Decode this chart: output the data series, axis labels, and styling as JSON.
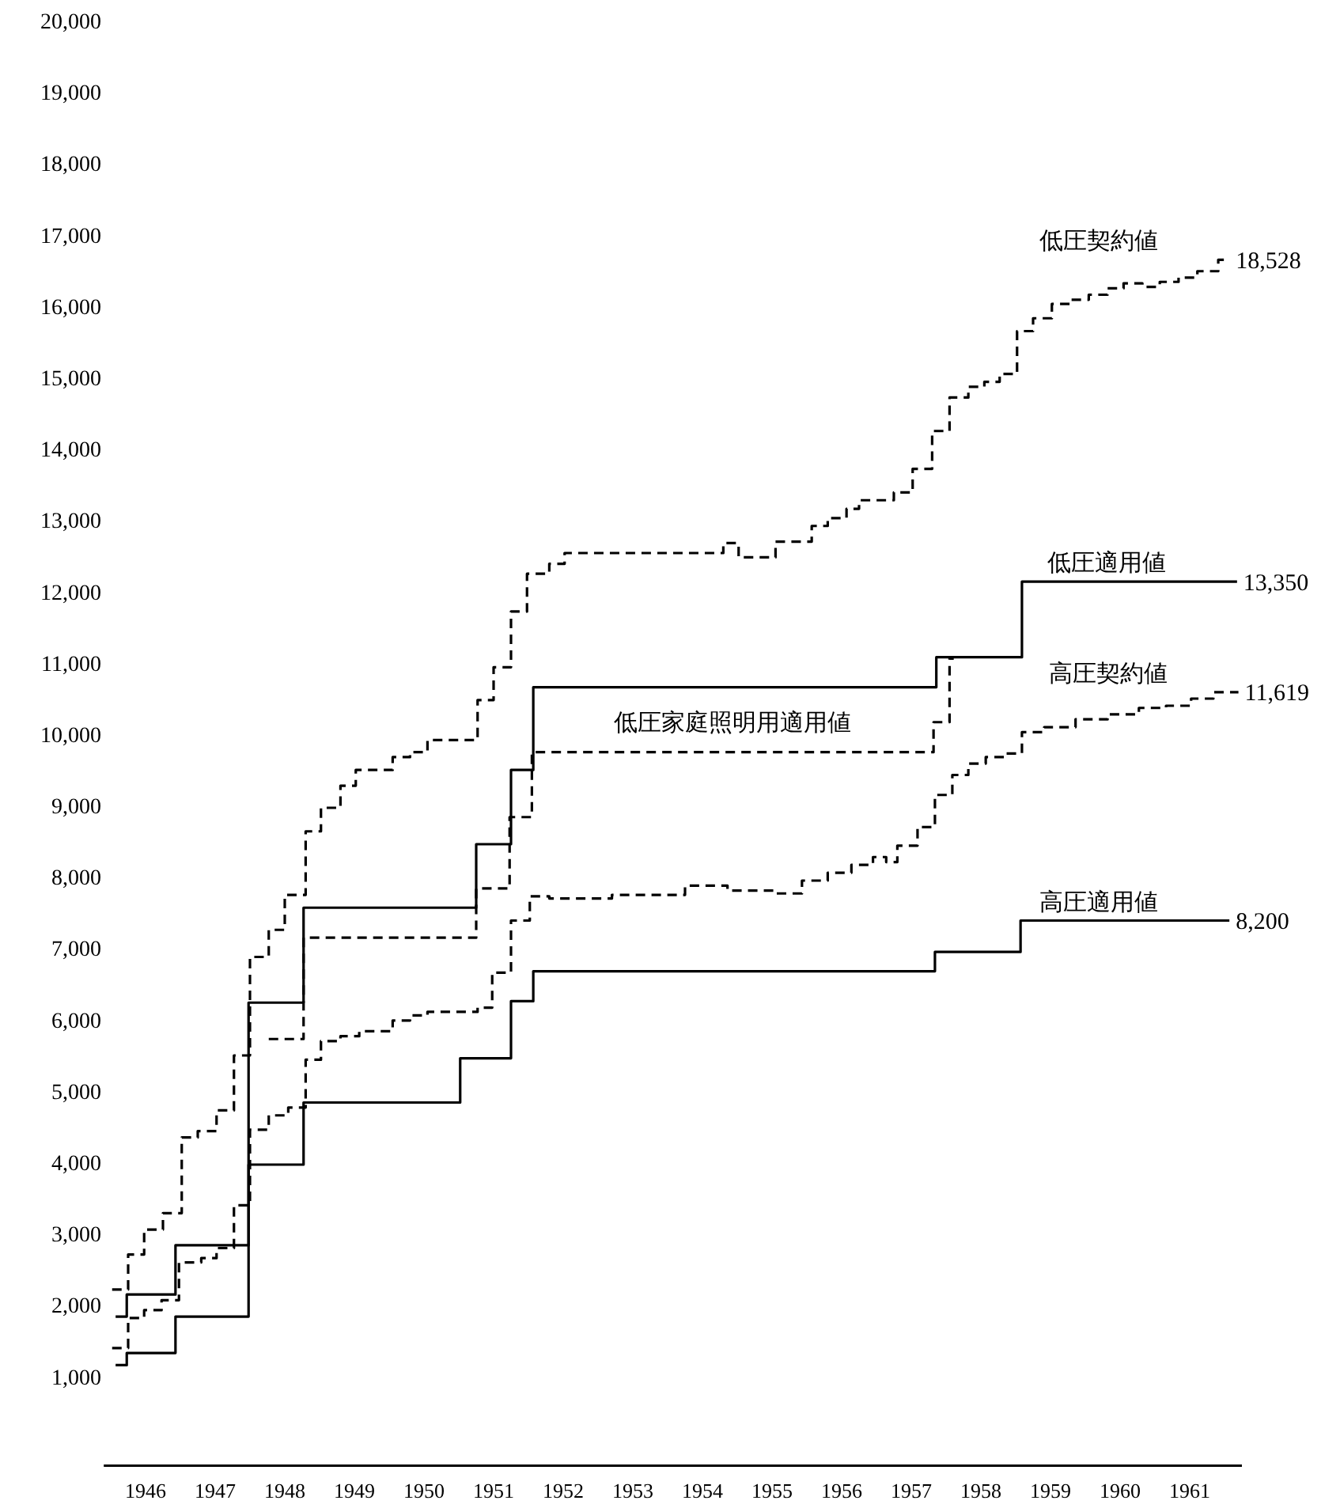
{
  "chart_data": {
    "type": "step",
    "xlim": [
      1945.4,
      1961.75
    ],
    "ylim": [
      -250,
      20250
    ],
    "xticks": [
      1946,
      1947,
      1948,
      1949,
      1950,
      1951,
      1952,
      1953,
      1954,
      1955,
      1956,
      1957,
      1958,
      1959,
      1960,
      1961
    ],
    "yticks": [
      {
        "value": 1000,
        "label": "1,000"
      },
      {
        "value": 2000,
        "label": "2,000"
      },
      {
        "value": 3000,
        "label": "3,000"
      },
      {
        "value": 4000,
        "label": "4,000"
      },
      {
        "value": 5000,
        "label": "5,000"
      },
      {
        "value": 6000,
        "label": "6,000"
      },
      {
        "value": 7000,
        "label": "7,000"
      },
      {
        "value": 8000,
        "label": "8,000"
      },
      {
        "value": 9000,
        "label": "9,000"
      },
      {
        "value": 10000,
        "label": "10,000"
      },
      {
        "value": 11000,
        "label": "11,000"
      },
      {
        "value": 12000,
        "label": "12,000"
      },
      {
        "value": 13000,
        "label": "13,000"
      },
      {
        "value": 14000,
        "label": "14,000"
      },
      {
        "value": 15000,
        "label": "15,000"
      },
      {
        "value": 16000,
        "label": "16,000"
      },
      {
        "value": 17000,
        "label": "17,000"
      },
      {
        "value": 18000,
        "label": "18,000"
      },
      {
        "value": 19000,
        "label": "19,000"
      },
      {
        "value": 20000,
        "label": "20,000"
      }
    ],
    "grid": false,
    "marker": "none",
    "series": [
      {
        "name": "低圧契約値",
        "color": "#000000",
        "line_style": "dashed",
        "x": [
          1945.52,
          1945.75,
          1945.98,
          1946.25,
          1946.52,
          1946.75,
          1947.02,
          1947.27,
          1947.5,
          1947.77,
          1948.0,
          1948.3,
          1948.52,
          1948.8,
          1949.02,
          1949.55,
          1949.8,
          1950.05,
          1950.77,
          1951.0,
          1951.25,
          1951.48,
          1951.8,
          1952.02,
          1954.3,
          1954.52,
          1955.05,
          1955.57,
          1955.8,
          1956.07,
          1956.25,
          1956.75,
          1957.02,
          1957.3,
          1957.55,
          1957.82,
          1958.05,
          1958.27,
          1958.52,
          1958.75,
          1959.02,
          1959.3,
          1959.55,
          1959.82,
          1960.05,
          1960.32,
          1960.57,
          1960.84,
          1961.11,
          1961.41,
          1961.57
        ],
        "values": [
          2220,
          2710,
          3060,
          3290,
          4350,
          4440,
          4730,
          5500,
          6880,
          7260,
          7750,
          8640,
          8970,
          9280,
          9500,
          9680,
          9750,
          9920,
          10480,
          10940,
          11720,
          12250,
          12390,
          12540,
          12680,
          12480,
          12700,
          12920,
          13030,
          13160,
          13280,
          13390,
          13720,
          14250,
          14720,
          14870,
          14940,
          15050,
          15650,
          15830,
          16030,
          16090,
          16160,
          16250,
          16320,
          16270,
          16340,
          16400,
          16490,
          16650,
          16650
        ]
      },
      {
        "name": "低圧適用値",
        "color": "#000000",
        "line_style": "solid",
        "x": [
          1945.57,
          1945.73,
          1946.43,
          1947.48,
          1948.27,
          1950.75,
          1951.25,
          1951.57,
          1957.36,
          1958.59,
          1961.68
        ],
        "values": [
          1840,
          2150,
          2840,
          6240,
          7570,
          8460,
          9500,
          10660,
          11080,
          12140,
          12140
        ]
      },
      {
        "name": "低圧家庭照明用適用値",
        "color": "#000000",
        "line_style": "dashed",
        "x": [
          1947.77,
          1948.27,
          1950.75,
          1951.23,
          1951.55,
          1957.32,
          1957.55,
          1957.61
        ],
        "values": [
          5730,
          7150,
          7840,
          8840,
          9750,
          10170,
          11060,
          11060
        ]
      },
      {
        "name": "高圧契約値",
        "color": "#000000",
        "line_style": "dashed",
        "x": [
          1945.52,
          1945.75,
          1945.98,
          1946.23,
          1946.48,
          1946.8,
          1947.02,
          1947.27,
          1947.5,
          1947.77,
          1948.05,
          1948.3,
          1948.52,
          1948.8,
          1949.07,
          1949.55,
          1949.8,
          1950.05,
          1950.77,
          1950.98,
          1951.25,
          1951.52,
          1951.8,
          1952.7,
          1953.75,
          1954.36,
          1955.05,
          1955.43,
          1955.8,
          1956.14,
          1956.45,
          1956.64,
          1956.8,
          1957.09,
          1957.34,
          1957.59,
          1957.82,
          1958.07,
          1958.34,
          1958.59,
          1958.91,
          1959.36,
          1959.82,
          1960.27,
          1960.66,
          1961.02,
          1961.34,
          1961.7
        ],
        "values": [
          1400,
          1820,
          1930,
          2070,
          2600,
          2660,
          2800,
          3400,
          4460,
          4660,
          4770,
          5440,
          5700,
          5770,
          5840,
          5990,
          6060,
          6110,
          6170,
          6660,
          7390,
          7730,
          7700,
          7750,
          7880,
          7810,
          7770,
          7950,
          8060,
          8170,
          8280,
          8210,
          8440,
          8700,
          9150,
          9430,
          9590,
          9680,
          9730,
          10030,
          10100,
          10210,
          10280,
          10370,
          10400,
          10500,
          10590,
          10590
        ]
      },
      {
        "name": "高圧適用値",
        "color": "#000000",
        "line_style": "solid",
        "x": [
          1945.57,
          1945.73,
          1946.43,
          1947.48,
          1948.27,
          1950.52,
          1951.25,
          1951.57,
          1957.34,
          1958.57,
          1961.57
        ],
        "values": [
          1160,
          1330,
          1840,
          3970,
          4840,
          5460,
          6260,
          6680,
          6950,
          7390,
          7390
        ]
      }
    ],
    "annotations": [
      {
        "text": "18,528",
        "x": 1961.57,
        "y": 16650
      },
      {
        "text": "13,350",
        "x": 1961.68,
        "y": 12140
      },
      {
        "text": "11,619",
        "x": 1961.7,
        "y": 10590
      },
      {
        "text": "8,200",
        "x": 1961.57,
        "y": 7390
      }
    ]
  }
}
